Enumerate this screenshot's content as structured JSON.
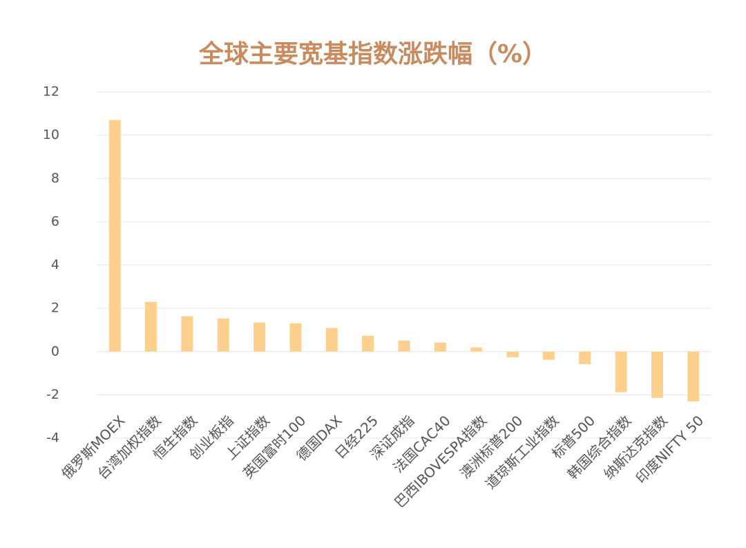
{
  "chart_data": {
    "type": "bar",
    "title": "全球主要宽基指数涨跌幅（%）",
    "categories": [
      "俄罗斯MOEX",
      "台湾加权指数",
      "恒生指数",
      "创业板指",
      "上证指数",
      "英国富时100",
      "德国DAX",
      "日经225",
      "深证成指",
      "法国CAC40",
      "巴西IBOVESPA指数",
      "澳洲标普200",
      "道琼斯工业指数",
      "标普500",
      "韩国综合指数",
      "纳斯达克指数",
      "印度NIFTY 50"
    ],
    "values": [
      10.7,
      2.3,
      1.63,
      1.53,
      1.34,
      1.31,
      1.09,
      0.73,
      0.51,
      0.42,
      0.19,
      -0.26,
      -0.38,
      -0.58,
      -1.88,
      -2.14,
      -2.3
    ],
    "color": "#fdd08e",
    "ylim": [
      -4,
      12
    ],
    "yticks": [
      -4,
      -2,
      0,
      2,
      4,
      6,
      8,
      10,
      12
    ],
    "grid": true
  }
}
